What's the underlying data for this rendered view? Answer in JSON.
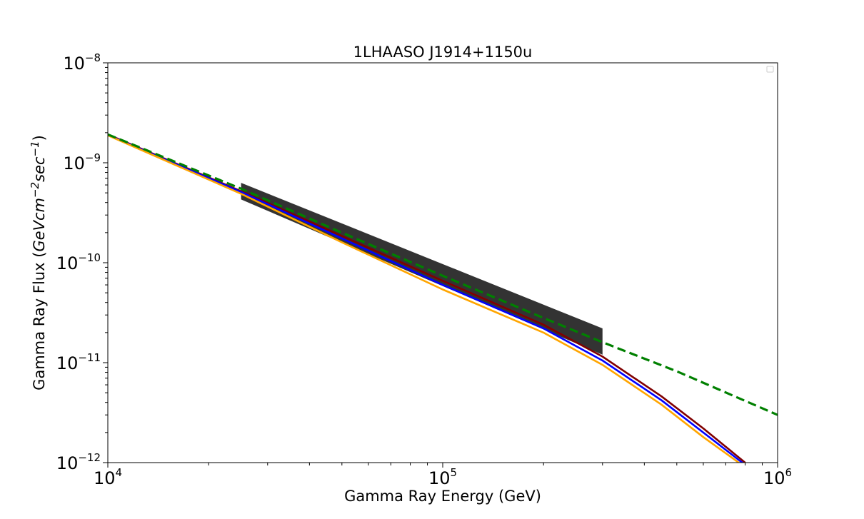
{
  "chart_data": {
    "type": "line",
    "title": "1LHAASO J1914+1150u",
    "xlabel": "Gamma Ray Energy (GeV)",
    "ylabel_prefix": "Gamma Ray Flux (",
    "ylabel_units": "GeVcm",
    "ylabel_exp1": "−2",
    "ylabel_mid": "sec",
    "ylabel_exp2": "−1",
    "ylabel_suffix": ")",
    "x_scale": "log",
    "y_scale": "log",
    "xlim": [
      10000,
      1000000
    ],
    "ylim": [
      1e-12,
      1e-08
    ],
    "x_ticks": [
      {
        "value": 10000,
        "base": "10",
        "exp": "4"
      },
      {
        "value": 100000,
        "base": "10",
        "exp": "5"
      },
      {
        "value": 1000000,
        "base": "10",
        "exp": "6"
      }
    ],
    "y_ticks": [
      {
        "value": 1e-12,
        "base": "10",
        "exp": "−12"
      },
      {
        "value": 1e-11,
        "base": "10",
        "exp": "−11"
      },
      {
        "value": 1e-10,
        "base": "10",
        "exp": "−10"
      },
      {
        "value": 1e-09,
        "base": "10",
        "exp": "−9"
      },
      {
        "value": 1e-08,
        "base": "10",
        "exp": "−8"
      }
    ],
    "grid": false,
    "legend": "upper-right (empty)",
    "band": {
      "color": "#000000",
      "x": [
        25000,
        300000
      ],
      "upper": [
        6.3e-10,
        2.2e-11
      ],
      "lower": [
        4.3e-10,
        1.2e-11
      ]
    },
    "series": [
      {
        "color": "#008000",
        "style": "dashed",
        "x": [
          10000,
          25000,
          50000,
          100000,
          200000,
          300000,
          500000,
          1000000
        ],
        "y": [
          1.92e-09,
          5.5e-10,
          2e-10,
          7.4e-11,
          2.8e-11,
          1.6e-11,
          8.2e-12,
          3e-12
        ]
      },
      {
        "color": "#800000",
        "style": "solid",
        "x": [
          10000,
          25000,
          50000,
          100000,
          200000,
          300000,
          450000,
          600000,
          800000
        ],
        "y": [
          1.92e-09,
          5.2e-10,
          1.85e-10,
          6.6e-11,
          2.4e-11,
          1.15e-11,
          4.6e-12,
          2.2e-12,
          1e-12
        ]
      },
      {
        "color": "#0000ff",
        "style": "solid",
        "x": [
          10000,
          25000,
          50000,
          100000,
          200000,
          300000,
          450000,
          600000,
          800000
        ],
        "y": [
          1.9e-09,
          5.1e-10,
          1.75e-10,
          6e-11,
          2.2e-11,
          1.05e-11,
          4.2e-12,
          2e-12,
          9.5e-13
        ]
      },
      {
        "color": "#ffa500",
        "style": "solid",
        "x": [
          10000,
          25000,
          50000,
          100000,
          200000,
          300000,
          450000,
          600000,
          800000
        ],
        "y": [
          1.88e-09,
          4.9e-10,
          1.6e-10,
          5.4e-11,
          2e-11,
          9.5e-12,
          3.8e-12,
          1.8e-12,
          9e-13
        ]
      }
    ]
  }
}
